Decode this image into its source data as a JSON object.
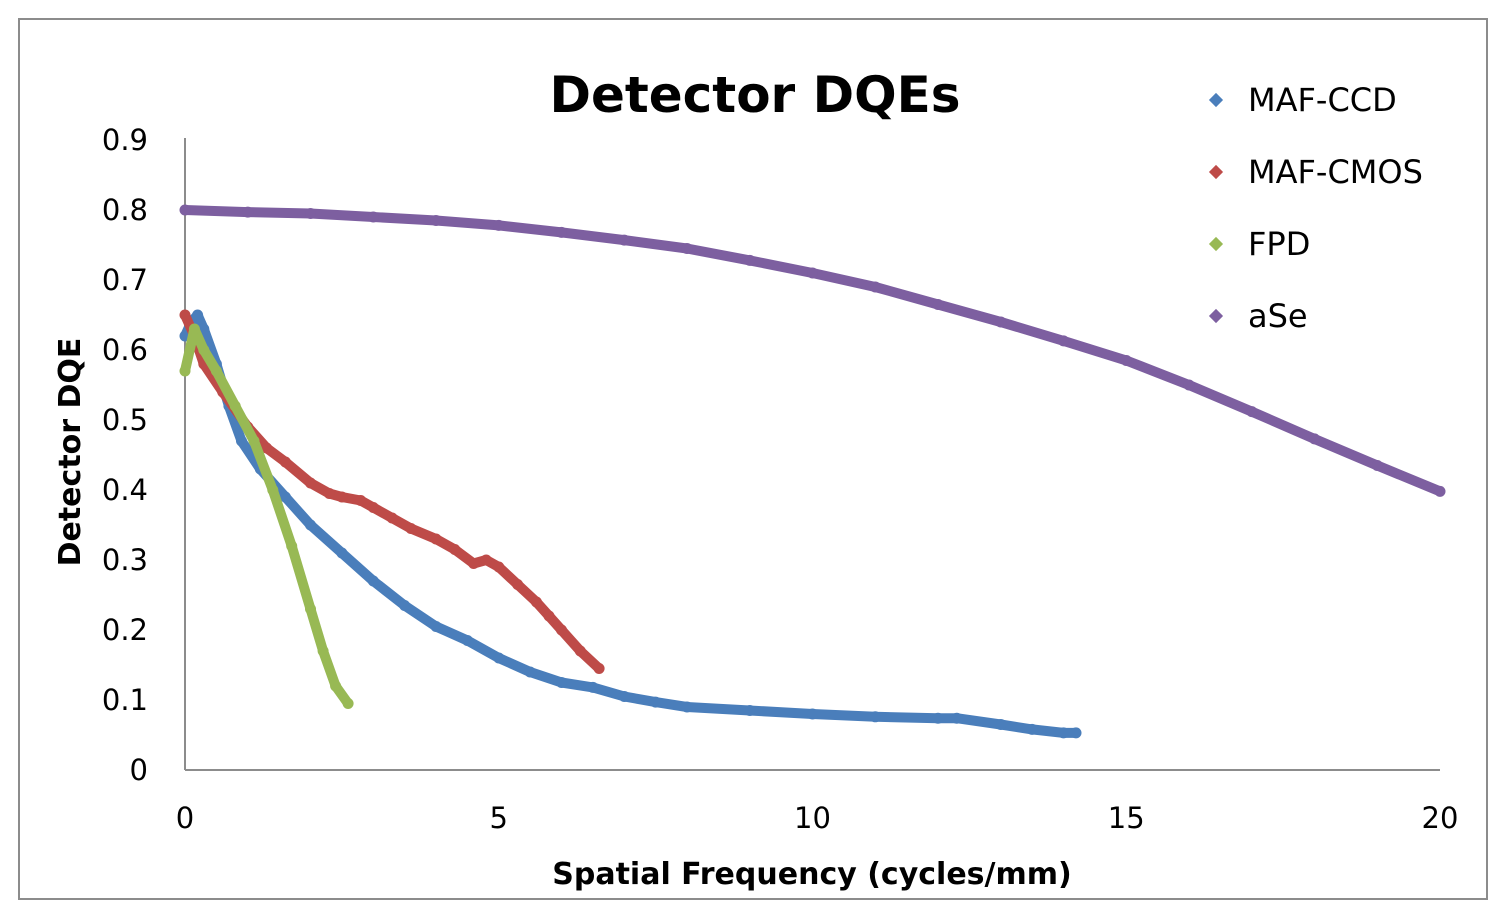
{
  "chart_data": {
    "type": "line",
    "title": "Detector DQEs",
    "xlabel": "Spatial Frequency (cycles/mm)",
    "ylabel": "Detector DQE",
    "xlim": [
      0,
      20
    ],
    "ylim": [
      0,
      0.9
    ],
    "xticks": [
      0,
      5,
      10,
      15,
      20
    ],
    "yticks": [
      0,
      0.1,
      0.2,
      0.3,
      0.4,
      0.5,
      0.6,
      0.7,
      0.8,
      0.9
    ],
    "xtick_labels": [
      "0",
      "5",
      "10",
      "15",
      "20"
    ],
    "ytick_labels": [
      "0",
      "0.1",
      "0.2",
      "0.3",
      "0.4",
      "0.5",
      "0.6",
      "0.7",
      "0.8",
      "0.9"
    ],
    "grid": false,
    "legend_position": "top-right",
    "series": [
      {
        "name": "MAF-CCD",
        "color": "#4a7ebb",
        "x": [
          0,
          0.1,
          0.2,
          0.3,
          0.5,
          0.7,
          0.9,
          1.2,
          1.6,
          2.0,
          2.5,
          3.0,
          3.5,
          4.0,
          4.5,
          5.0,
          5.5,
          6.0,
          6.5,
          7.0,
          7.5,
          8.0,
          9.0,
          10.0,
          11.0,
          12.0,
          12.3,
          13.0,
          13.5,
          14.0,
          14.2
        ],
        "y": [
          0.62,
          0.64,
          0.65,
          0.63,
          0.58,
          0.52,
          0.47,
          0.43,
          0.39,
          0.35,
          0.31,
          0.27,
          0.235,
          0.205,
          0.185,
          0.16,
          0.14,
          0.125,
          0.118,
          0.105,
          0.097,
          0.09,
          0.085,
          0.08,
          0.076,
          0.074,
          0.074,
          0.065,
          0.058,
          0.053,
          0.053
        ]
      },
      {
        "name": "MAF-CMOS",
        "color": "#be4b48",
        "x": [
          0,
          0.15,
          0.3,
          0.6,
          1.0,
          1.3,
          1.6,
          2.0,
          2.3,
          2.5,
          2.8,
          3.0,
          3.3,
          3.6,
          4.0,
          4.3,
          4.6,
          4.8,
          5.0,
          5.3,
          5.6,
          5.8,
          6.0,
          6.3,
          6.6
        ],
        "y": [
          0.65,
          0.62,
          0.58,
          0.54,
          0.49,
          0.46,
          0.44,
          0.41,
          0.395,
          0.39,
          0.385,
          0.375,
          0.36,
          0.345,
          0.33,
          0.315,
          0.295,
          0.3,
          0.29,
          0.265,
          0.24,
          0.22,
          0.2,
          0.17,
          0.145
        ]
      },
      {
        "name": "FPD",
        "color": "#98b954",
        "x": [
          0,
          0.15,
          0.3,
          0.5,
          0.8,
          1.1,
          1.4,
          1.7,
          2.0,
          2.2,
          2.4,
          2.6
        ],
        "y": [
          0.57,
          0.63,
          0.6,
          0.57,
          0.52,
          0.47,
          0.4,
          0.32,
          0.23,
          0.17,
          0.12,
          0.095
        ]
      },
      {
        "name": "aSe",
        "color": "#7d5fa0",
        "x": [
          0,
          1,
          2,
          3,
          4,
          5,
          6,
          7,
          8,
          9,
          10,
          11,
          12,
          13,
          14,
          15,
          16,
          17,
          18,
          19,
          20
        ],
        "y": [
          0.8,
          0.797,
          0.795,
          0.79,
          0.785,
          0.778,
          0.768,
          0.757,
          0.745,
          0.728,
          0.71,
          0.69,
          0.665,
          0.64,
          0.613,
          0.585,
          0.55,
          0.512,
          0.473,
          0.435,
          0.398
        ]
      }
    ]
  }
}
